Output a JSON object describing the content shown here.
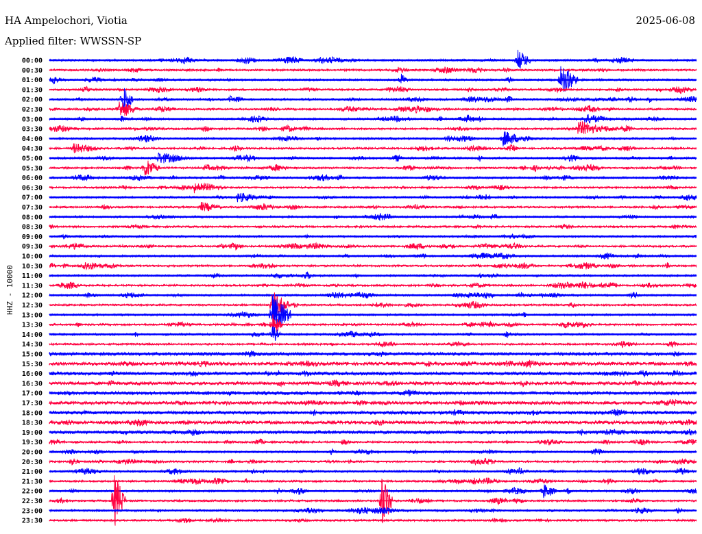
{
  "header": {
    "station": "HA Ampelochori, Viotia",
    "filter": "Applied filter: WWSSN-SP",
    "date": "2025-06-08"
  },
  "chart_data": {
    "type": "line",
    "title": "HA Ampelochori, Viotia",
    "subtitle": "Applied filter: WWSSN-SP",
    "date": "2025-06-08",
    "ylabel": "HHZ - 10000",
    "row_minutes": 30,
    "colors": [
      "#0000ff",
      "#ff0040"
    ],
    "row_labels": [
      "00:00",
      "00:30",
      "01:00",
      "01:30",
      "02:00",
      "02:30",
      "03:00",
      "03:30",
      "04:00",
      "04:30",
      "05:00",
      "05:30",
      "06:00",
      "06:30",
      "07:00",
      "07:30",
      "08:00",
      "08:30",
      "09:00",
      "09:30",
      "10:00",
      "10:30",
      "11:00",
      "11:30",
      "12:00",
      "12:30",
      "13:00",
      "13:30",
      "14:00",
      "14:30",
      "15:00",
      "15:30",
      "16:00",
      "16:30",
      "17:00",
      "17:30",
      "18:00",
      "18:30",
      "19:00",
      "19:30",
      "20:00",
      "20:30",
      "21:00",
      "21:30",
      "22:00",
      "22:30",
      "23:00",
      "23:30"
    ],
    "events": [
      {
        "row": 0,
        "minute": 21.7,
        "amp": 16,
        "dur": 0.6
      },
      {
        "row": 2,
        "minute": 16.3,
        "amp": 10,
        "dur": 0.3
      },
      {
        "row": 2,
        "minute": 21.2,
        "amp": 6,
        "dur": 0.3
      },
      {
        "row": 2,
        "minute": 23.7,
        "amp": 22,
        "dur": 0.8
      },
      {
        "row": 4,
        "minute": 3.4,
        "amp": 20,
        "dur": 0.5
      },
      {
        "row": 5,
        "minute": 3.2,
        "amp": 14,
        "dur": 0.9
      },
      {
        "row": 6,
        "minute": 24.8,
        "amp": 8,
        "dur": 1.3
      },
      {
        "row": 7,
        "minute": 24.5,
        "amp": 12,
        "dur": 1.2
      },
      {
        "row": 8,
        "minute": 21.0,
        "amp": 12,
        "dur": 1.0
      },
      {
        "row": 9,
        "minute": 1.1,
        "amp": 8,
        "dur": 1.3
      },
      {
        "row": 10,
        "minute": 5.0,
        "amp": 9,
        "dur": 1.6
      },
      {
        "row": 11,
        "minute": 4.4,
        "amp": 15,
        "dur": 0.7
      },
      {
        "row": 13,
        "minute": 6.7,
        "amp": 9,
        "dur": 1.4
      },
      {
        "row": 14,
        "minute": 8.7,
        "amp": 8,
        "dur": 1.1
      },
      {
        "row": 15,
        "minute": 7.0,
        "amp": 8,
        "dur": 1.0
      },
      {
        "row": 21,
        "minute": 1.5,
        "amp": 8,
        "dur": 1.2
      },
      {
        "row": 25,
        "minute": 10.3,
        "amp": 22,
        "dur": 0.8
      },
      {
        "row": 26,
        "minute": 10.3,
        "amp": 30,
        "dur": 0.9
      },
      {
        "row": 27,
        "minute": 10.3,
        "amp": 18,
        "dur": 0.5
      },
      {
        "row": 28,
        "minute": 10.3,
        "amp": 14,
        "dur": 0.4
      },
      {
        "row": 44,
        "minute": 22.9,
        "amp": 12,
        "dur": 0.6
      },
      {
        "row": 45,
        "minute": 3.0,
        "amp": 40,
        "dur": 0.5
      },
      {
        "row": 45,
        "minute": 15.4,
        "amp": 40,
        "dur": 0.5
      }
    ]
  }
}
